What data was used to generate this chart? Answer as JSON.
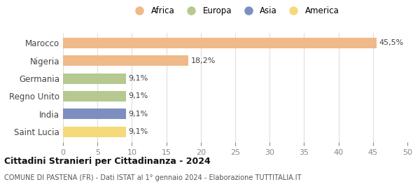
{
  "categories": [
    "Marocco",
    "Nigeria",
    "Germania",
    "Regno Unito",
    "India",
    "Saint Lucia"
  ],
  "values": [
    45.5,
    18.2,
    9.1,
    9.1,
    9.1,
    9.1
  ],
  "labels": [
    "45,5%",
    "18,2%",
    "9,1%",
    "9,1%",
    "9,1%",
    "9,1%"
  ],
  "bar_colors": [
    "#f0b989",
    "#f0b989",
    "#b5c990",
    "#b5c990",
    "#7d8fc0",
    "#f5d97a"
  ],
  "legend_items": [
    {
      "label": "Africa",
      "color": "#f0b989"
    },
    {
      "label": "Europa",
      "color": "#b5c990"
    },
    {
      "label": "Asia",
      "color": "#7d8fc0"
    },
    {
      "label": "America",
      "color": "#f5d97a"
    }
  ],
  "xlim": [
    0,
    50
  ],
  "xticks": [
    0,
    5,
    10,
    15,
    20,
    25,
    30,
    35,
    40,
    45,
    50
  ],
  "title": "Cittadini Stranieri per Cittadinanza - 2024",
  "subtitle": "COMUNE DI PASTENA (FR) - Dati ISTAT al 1° gennaio 2024 - Elaborazione TUTTITALIA.IT",
  "background_color": "#ffffff",
  "grid_color": "#dddddd"
}
